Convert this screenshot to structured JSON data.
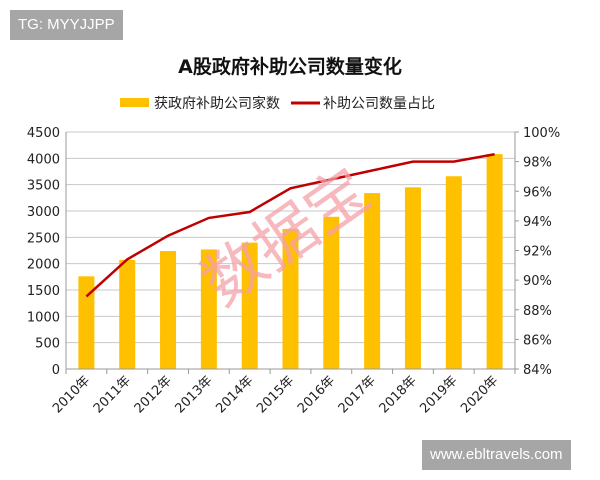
{
  "overlays": {
    "top_left_tag": "TG: MYYJJPP",
    "bottom_right_tag": "www.ebltravels.com"
  },
  "chart_data": {
    "type": "bar+line",
    "title": "A股政府补助公司数量变化",
    "categories": [
      "2010年",
      "2011年",
      "2012年",
      "2013年",
      "2014年",
      "2015年",
      "2016年",
      "2017年",
      "2018年",
      "2019年",
      "2020年"
    ],
    "series": [
      {
        "name": "获政府补助公司家数",
        "type": "bar",
        "axis": "left",
        "color": "#ffc000",
        "values": [
          1760,
          2070,
          2240,
          2270,
          2400,
          2660,
          2890,
          3340,
          3450,
          3660,
          4080
        ]
      },
      {
        "name": "补助公司数量占比",
        "type": "line",
        "axis": "right",
        "color": "#c00000",
        "values": [
          88.9,
          91.4,
          93.0,
          94.2,
          94.6,
          96.2,
          96.8,
          97.4,
          98.0,
          98.0,
          98.5
        ]
      }
    ],
    "y_left": {
      "range": [
        0,
        4500
      ],
      "ticks": [
        "0",
        "500",
        "1000",
        "1500",
        "2000",
        "2500",
        "3000",
        "3500",
        "4000",
        "4500"
      ]
    },
    "y_right": {
      "range": [
        84,
        100
      ],
      "ticks": [
        "84%",
        "86%",
        "88%",
        "90%",
        "92%",
        "94%",
        "96%",
        "98%",
        "100%"
      ]
    },
    "grid": true,
    "legend_position": "top",
    "watermark": "数据宝"
  }
}
